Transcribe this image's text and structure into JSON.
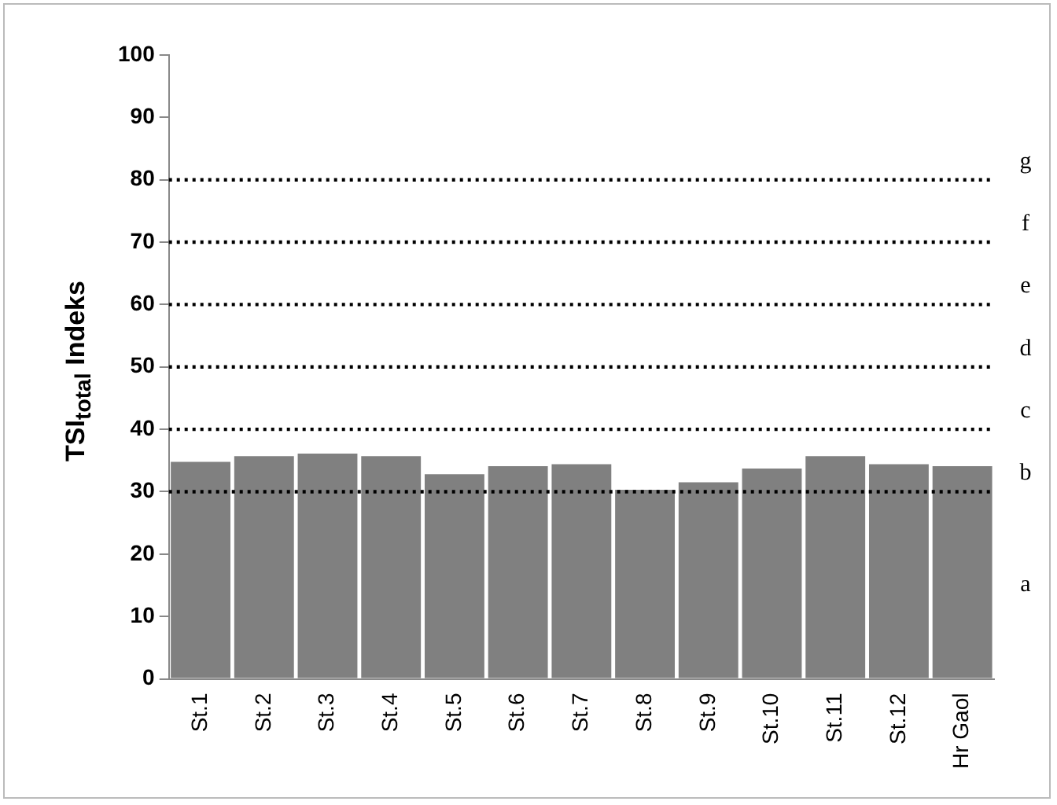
{
  "chart_data": {
    "type": "bar",
    "ylabel": "TSI$_{total}$ Indeks",
    "categories": [
      "St.1",
      "St.2",
      "St.3",
      "St.4",
      "St.5",
      "St.6",
      "St.7",
      "St.8",
      "St.9",
      "St.10",
      "St.11",
      "St.12",
      "Hr Gaol"
    ],
    "values": [
      34.8,
      35.7,
      36.1,
      35.7,
      32.8,
      34.1,
      34.4,
      30.3,
      31.5,
      33.7,
      35.7,
      34.4,
      34.1
    ],
    "color": "#808080",
    "ylim": [
      0,
      100
    ],
    "yticks": [
      0,
      10,
      20,
      30,
      40,
      50,
      60,
      70,
      80,
      90,
      100
    ],
    "grid": false,
    "legend": false,
    "ref_lines": [
      {
        "axis": "y",
        "value": 30,
        "label": "b",
        "color": "#000000",
        "line_style": "dotted"
      },
      {
        "axis": "y",
        "value": 40,
        "label": "c",
        "color": "#000000",
        "line_style": "dotted"
      },
      {
        "axis": "y",
        "value": 50,
        "label": "d",
        "color": "#000000",
        "line_style": "dotted"
      },
      {
        "axis": "y",
        "value": 60,
        "label": "e",
        "color": "#000000",
        "line_style": "dotted"
      },
      {
        "axis": "y",
        "value": 70,
        "label": "f",
        "color": "#000000",
        "line_style": "dotted"
      },
      {
        "axis": "y",
        "value": 80,
        "label": "g",
        "color": "#000000",
        "line_style": "dotted"
      }
    ],
    "annotations": [
      "a"
    ]
  }
}
